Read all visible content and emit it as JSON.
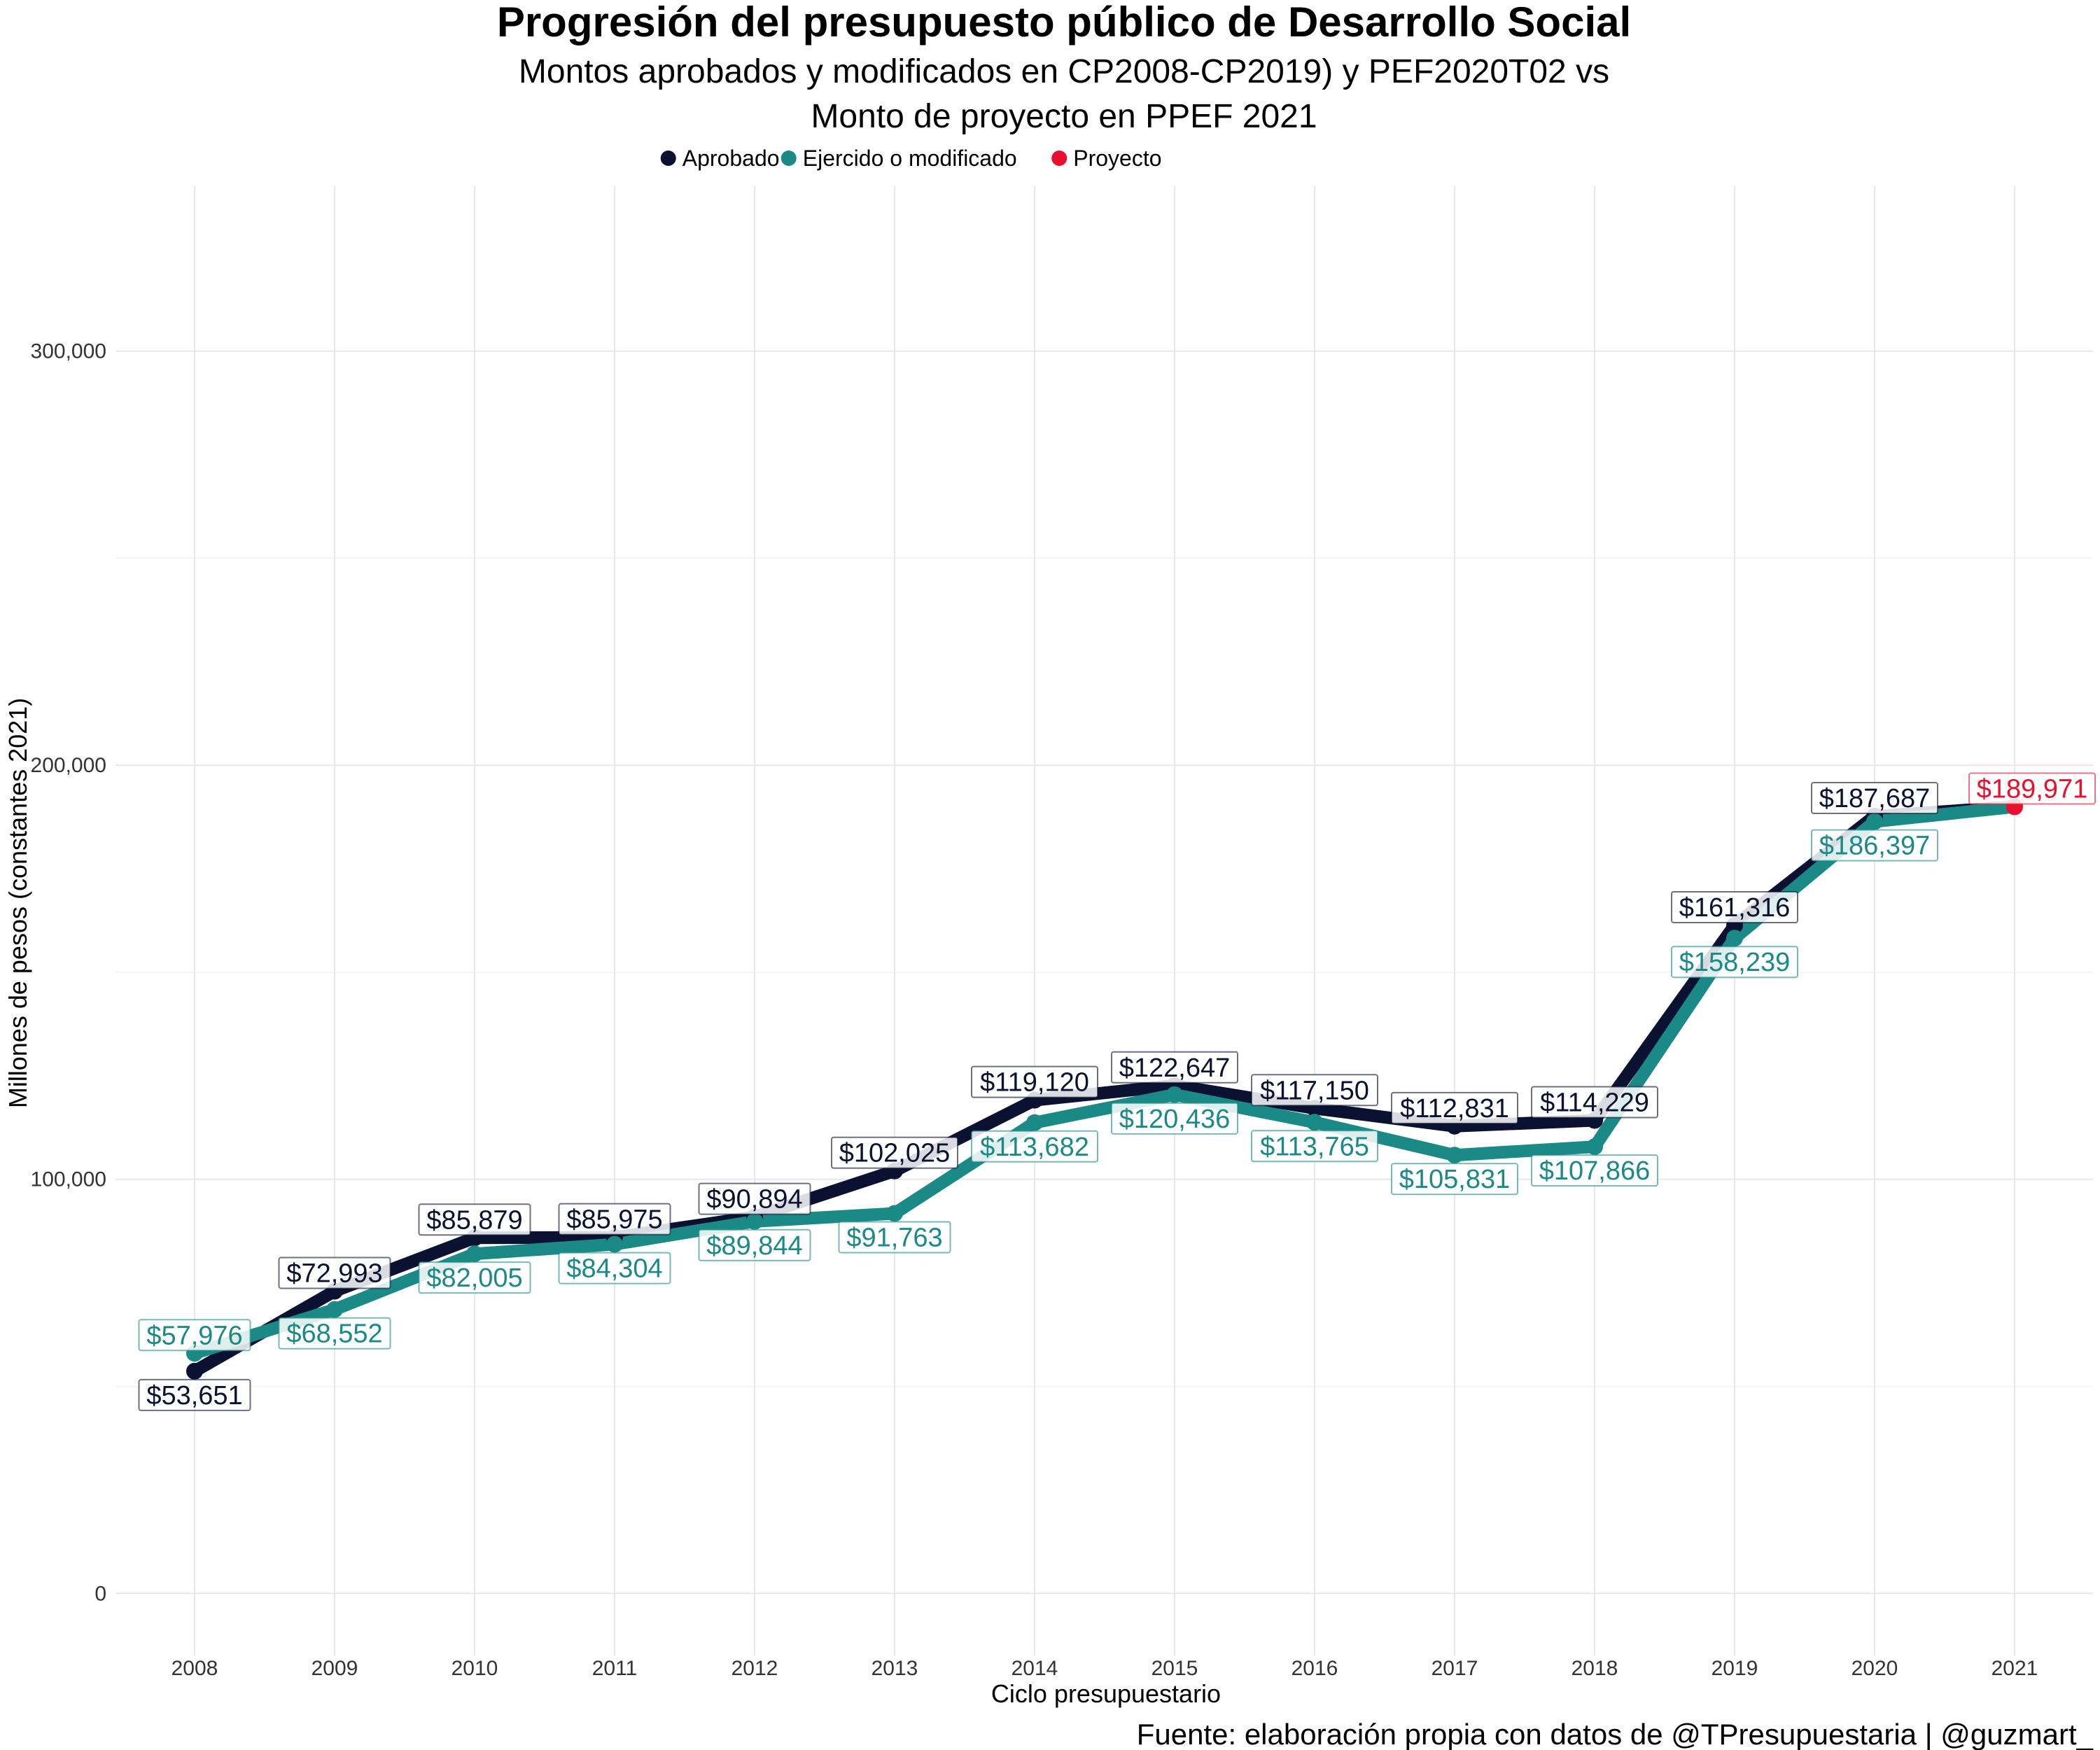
{
  "chart_data": {
    "type": "line",
    "title": "Progresión del presupuesto público de Desarrollo Social",
    "subtitle_lines": [
      "Montos aprobados y modificados en CP2008-CP2019) y PEF2020T02 vs",
      "Monto de proyecto en PPEF 2021"
    ],
    "xlabel": "Ciclo presupuestario",
    "ylabel": "Millones de pesos (constantes 2021)",
    "caption": "Fuente: elaboración propia con datos de @TPresupuestaria | @guzmart_",
    "categories": [
      "2008",
      "2009",
      "2010",
      "2011",
      "2012",
      "2013",
      "2014",
      "2015",
      "2016",
      "2017",
      "2018",
      "2019",
      "2020",
      "2021"
    ],
    "ylim": [
      -15000,
      340000
    ],
    "yticks": [
      0,
      100000,
      200000,
      300000
    ],
    "ytick_labels": [
      "0",
      "100,000",
      "200,000",
      "300,000"
    ],
    "grid": true,
    "legend_position": "top",
    "series": [
      {
        "name": "Aprobado",
        "color": "#0b1130",
        "values": [
          53651,
          72993,
          85879,
          85975,
          90894,
          102025,
          119120,
          122647,
          117150,
          112831,
          114229,
          161316,
          187687,
          189971
        ],
        "labels": [
          "$53,651",
          "$72,993",
          "$85,879",
          "$85,975",
          "$90,894",
          "$102,025",
          "$119,120",
          "$122,647",
          "$117,150",
          "$112,831",
          "$114,229",
          "$161,316",
          "$187,687",
          ""
        ]
      },
      {
        "name": "Ejercido o modificado",
        "color": "#1b8a87",
        "values": [
          57976,
          68552,
          82005,
          84304,
          89844,
          91763,
          113682,
          120436,
          113765,
          105831,
          107866,
          158239,
          186397,
          189971
        ],
        "labels": [
          "$57,976",
          "$68,552",
          "$82,005",
          "$84,304",
          "$89,844",
          "$91,763",
          "$113,682",
          "$120,436",
          "$113,765",
          "$105,831",
          "$107,866",
          "$158,239",
          "$186,397",
          ""
        ]
      },
      {
        "name": "Proyecto",
        "color": "#e8102e",
        "values": [
          null,
          null,
          null,
          null,
          null,
          null,
          null,
          null,
          null,
          null,
          null,
          null,
          null,
          189971
        ],
        "labels": [
          "",
          "",
          "",
          "",
          "",
          "",
          "",
          "",
          "",
          "",
          "",
          "",
          "",
          "$189,971"
        ]
      }
    ]
  }
}
